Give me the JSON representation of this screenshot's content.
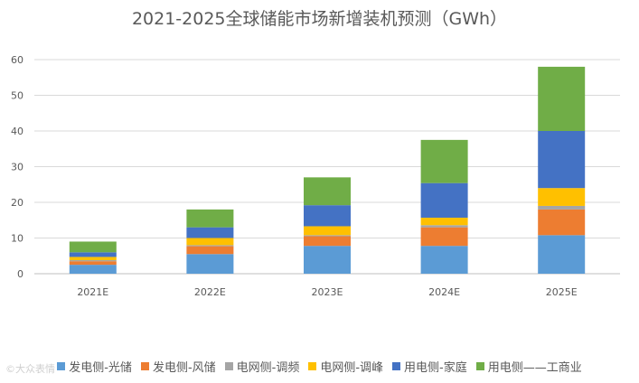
{
  "watermark": "©大众表情",
  "chart_data": {
    "type": "bar",
    "stacked": true,
    "title": "2021-2025全球储能市场新增装机预测（GWh）",
    "xlabel": "",
    "ylabel": "",
    "ylim": [
      0,
      60
    ],
    "yticks": [
      0,
      10,
      20,
      30,
      40,
      50,
      60
    ],
    "grid": true,
    "legend_position": "bottom",
    "categories": [
      "2021E",
      "2022E",
      "2023E",
      "2024E",
      "2025E"
    ],
    "series": [
      {
        "name": "发电侧-光储",
        "color": "#5B9BD5",
        "values": [
          2.5,
          5.5,
          7.8,
          7.8,
          10.8
        ]
      },
      {
        "name": "发电侧-风储",
        "color": "#ED7D31",
        "values": [
          1.0,
          2.2,
          2.7,
          5.2,
          7.2
        ]
      },
      {
        "name": "电网侧-调频",
        "color": "#A5A5A5",
        "values": [
          0.3,
          0.3,
          0.3,
          0.6,
          1.0
        ]
      },
      {
        "name": "电网侧-调峰",
        "color": "#FFC000",
        "values": [
          0.9,
          2.0,
          2.5,
          2.1,
          5.0
        ]
      },
      {
        "name": "用电侧-家庭",
        "color": "#4472C4",
        "values": [
          1.3,
          3.0,
          5.9,
          9.7,
          16.0
        ]
      },
      {
        "name": "用电侧——工商业",
        "color": "#70AD47",
        "values": [
          3.0,
          5.0,
          7.8,
          12.1,
          18.0
        ]
      }
    ]
  }
}
